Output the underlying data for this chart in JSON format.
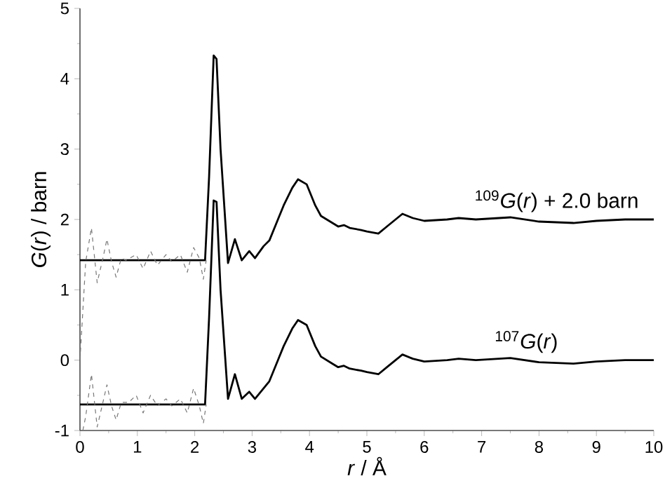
{
  "chart_data": {
    "type": "line",
    "xlabel": "*r* / Å",
    "ylabel": "*G*(*r*) / barn",
    "xlim": [
      0,
      10
    ],
    "ylim": [
      -1,
      5
    ],
    "xticks": [
      0,
      1,
      2,
      3,
      4,
      5,
      6,
      7,
      8,
      9,
      10
    ],
    "yticks": [
      -1,
      0,
      1,
      2,
      3,
      4,
      5
    ],
    "marker": "none",
    "series": [
      {
        "color": "#000000",
        "line_style": "solid",
        "x": [
          0,
          2.18,
          2.25,
          2.33,
          2.38,
          2.45,
          2.58,
          2.7,
          2.82,
          2.95,
          3.05,
          3.2,
          3.3,
          3.45,
          3.55,
          3.7,
          3.8,
          3.95,
          4.1,
          4.2,
          4.4,
          4.5,
          4.6,
          4.7,
          4.9,
          5.0,
          5.2,
          5.35,
          5.5,
          5.62,
          5.8,
          6.0,
          6.4,
          6.6,
          6.9,
          7.5,
          8.0,
          8.6,
          9.0,
          9.5,
          10
        ],
        "values": [
          1.42,
          1.42,
          2.6,
          4.33,
          4.28,
          3.0,
          1.38,
          1.72,
          1.42,
          1.55,
          1.45,
          1.62,
          1.7,
          2.0,
          2.2,
          2.45,
          2.57,
          2.5,
          2.2,
          2.05,
          1.95,
          1.9,
          1.92,
          1.88,
          1.85,
          1.83,
          1.8,
          1.9,
          2.0,
          2.08,
          2.02,
          1.98,
          2.0,
          2.02,
          2.0,
          2.03,
          1.97,
          1.95,
          1.98,
          2.0,
          2.0
        ]
      },
      {
        "color": "#000000",
        "line_style": "solid",
        "x": [
          0,
          2.18,
          2.25,
          2.33,
          2.38,
          2.45,
          2.58,
          2.7,
          2.82,
          2.95,
          3.05,
          3.2,
          3.3,
          3.45,
          3.55,
          3.7,
          3.8,
          3.95,
          4.1,
          4.2,
          4.4,
          4.5,
          4.6,
          4.7,
          4.9,
          5.0,
          5.2,
          5.35,
          5.5,
          5.62,
          5.8,
          6.0,
          6.4,
          6.6,
          6.9,
          7.5,
          8.0,
          8.6,
          9.0,
          9.5,
          10
        ],
        "values": [
          -0.63,
          -0.63,
          0.6,
          2.27,
          2.25,
          1.0,
          -0.55,
          -0.2,
          -0.55,
          -0.45,
          -0.55,
          -0.4,
          -0.3,
          0.0,
          0.2,
          0.45,
          0.57,
          0.5,
          0.2,
          0.05,
          -0.05,
          -0.1,
          -0.08,
          -0.12,
          -0.15,
          -0.17,
          -0.2,
          -0.1,
          0.0,
          0.08,
          0.02,
          -0.02,
          0.0,
          0.02,
          0.0,
          0.03,
          -0.03,
          -0.05,
          -0.02,
          0.0,
          0.0
        ]
      },
      {
        "color": "#777777",
        "line_style": "dashed",
        "x": [
          0,
          0.1,
          0.2,
          0.3,
          0.4,
          0.47,
          0.55,
          0.63,
          0.72,
          0.8,
          0.98,
          1.1,
          1.23,
          1.35,
          1.5,
          1.6,
          1.75,
          1.87,
          1.98,
          2.08,
          2.15,
          2.2
        ],
        "values": [
          0.0,
          1.4,
          1.88,
          1.1,
          1.45,
          1.72,
          1.4,
          1.18,
          1.45,
          1.42,
          1.5,
          1.3,
          1.55,
          1.35,
          1.5,
          1.4,
          1.5,
          1.25,
          1.6,
          1.45,
          1.15,
          1.42
        ]
      },
      {
        "color": "#777777",
        "line_style": "dashed",
        "x": [
          0.05,
          0.1,
          0.2,
          0.3,
          0.4,
          0.47,
          0.55,
          0.63,
          0.72,
          0.85,
          0.98,
          1.1,
          1.23,
          1.35,
          1.5,
          1.6,
          1.75,
          1.87,
          1.98,
          2.08,
          2.15,
          2.2
        ],
        "values": [
          -1.0,
          -0.8,
          -0.2,
          -0.95,
          -0.6,
          -0.35,
          -0.65,
          -0.85,
          -0.6,
          -0.6,
          -0.5,
          -0.75,
          -0.5,
          -0.65,
          -0.55,
          -0.65,
          -0.55,
          -0.75,
          -0.4,
          -0.65,
          -0.9,
          -0.63
        ]
      }
    ],
    "annotations": [
      {
        "text": "$^{109}$*G*(*r*) + 2.0 barn",
        "x": 6.85,
        "y": 2.08
      },
      {
        "text": "$^{107}$*G*(*r*)",
        "x": 7.2,
        "y": 0.08
      }
    ]
  }
}
